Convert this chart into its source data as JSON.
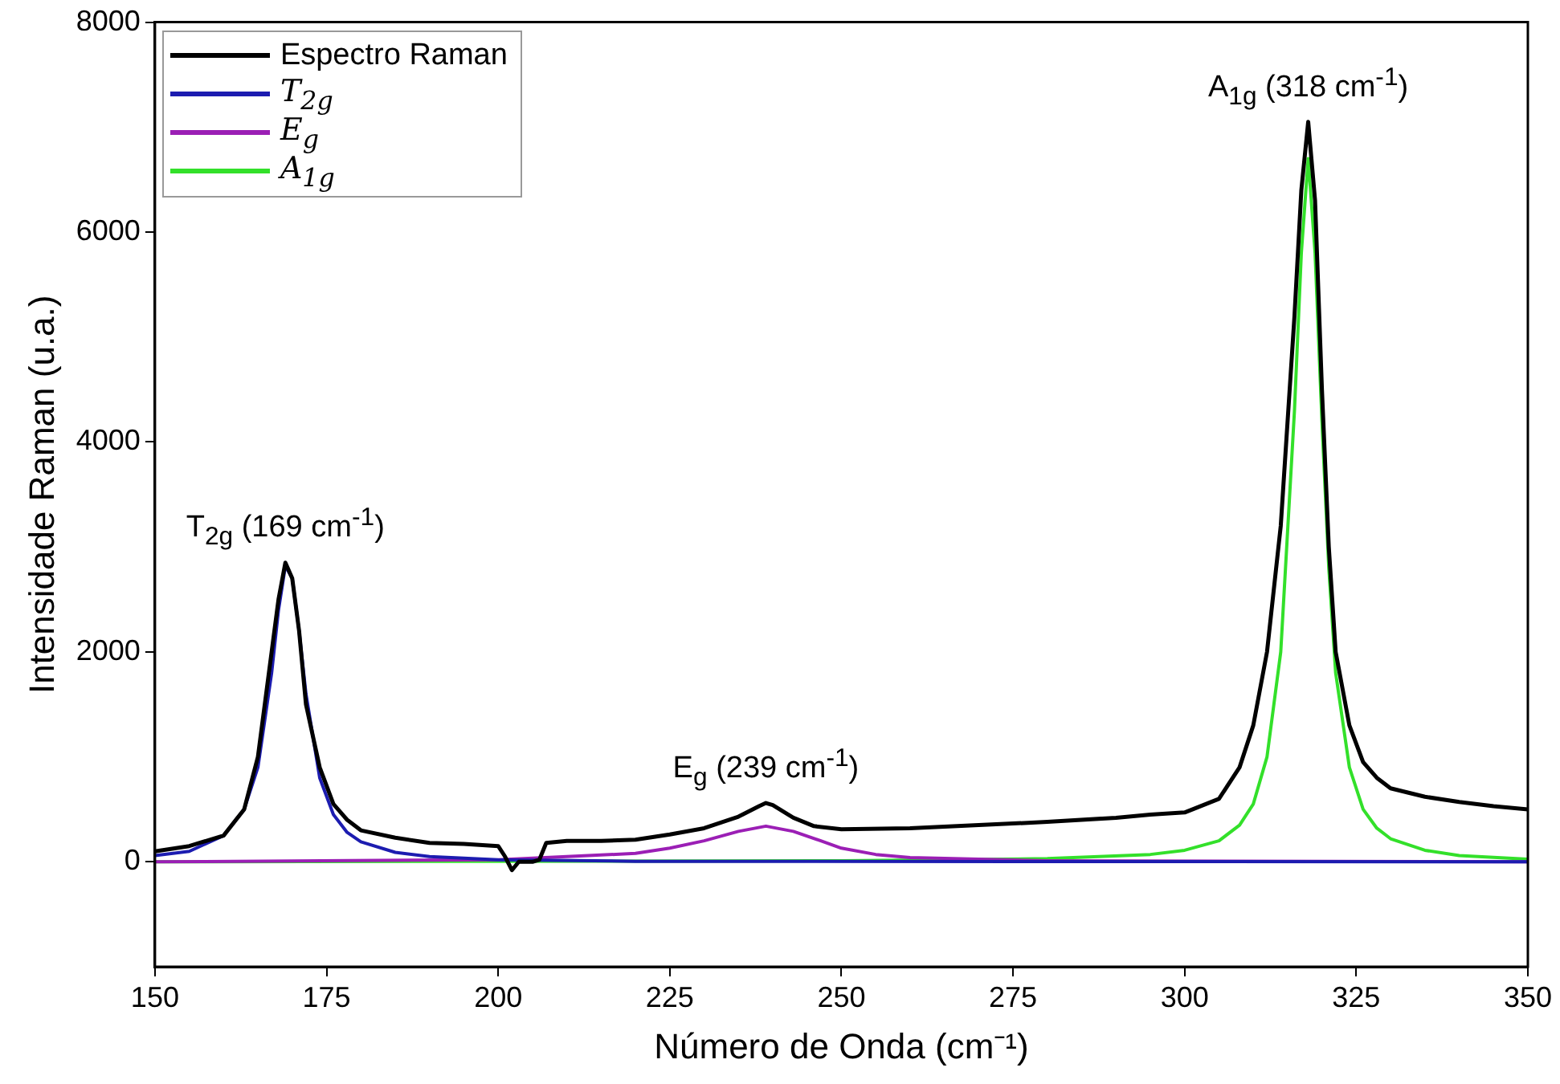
{
  "chart_data": {
    "type": "line",
    "xlabel": "Número de Onda (cm⁻¹)",
    "ylabel": "Intensidade Raman (u.a.)",
    "xlim": [
      150,
      350
    ],
    "xticks": [
      150,
      175,
      200,
      225,
      250,
      275,
      300,
      325,
      350
    ],
    "ylim": [
      -1000,
      8000
    ],
    "yticks": [
      0,
      2000,
      4000,
      6000,
      8000
    ],
    "grid": false,
    "legend": "top left",
    "marker": "none",
    "line_style": "solid",
    "annotations": [
      {
        "text": "T$_{2g}$ (169 cm$^{-1}$)",
        "x": 169,
        "y": 2850
      },
      {
        "text": "E$_{g}$ (239 cm$^{-1}$)",
        "x": 239,
        "y": 560
      },
      {
        "text": "A$_{1g}$ (318 cm$^{-1}$)",
        "x": 318,
        "y": 7050
      }
    ],
    "series": [
      {
        "name": "Espectro Raman",
        "color": "#000000",
        "x": [
          150,
          155,
          160,
          163,
          165,
          167,
          168,
          169,
          170,
          171,
          172,
          174,
          176,
          178,
          180,
          185,
          190,
          195,
          200,
          201,
          202,
          203,
          205,
          206,
          207,
          210,
          215,
          220,
          225,
          230,
          235,
          238,
          239,
          240,
          243,
          246,
          250,
          260,
          270,
          280,
          290,
          295,
          300,
          305,
          308,
          310,
          312,
          314,
          316,
          317,
          318,
          319,
          320,
          321,
          322,
          324,
          326,
          328,
          330,
          335,
          340,
          345,
          350
        ],
        "values": [
          100,
          150,
          250,
          500,
          1000,
          2000,
          2500,
          2850,
          2700,
          2200,
          1500,
          900,
          550,
          400,
          300,
          230,
          180,
          170,
          150,
          50,
          -80,
          0,
          0,
          20,
          180,
          200,
          200,
          210,
          260,
          320,
          430,
          530,
          560,
          540,
          420,
          340,
          310,
          320,
          350,
          380,
          420,
          450,
          470,
          600,
          900,
          1300,
          2000,
          3200,
          5200,
          6400,
          7050,
          6300,
          4500,
          3000,
          2000,
          1300,
          950,
          800,
          700,
          620,
          570,
          530,
          500
        ]
      },
      {
        "name": "T$_{2g}$",
        "color": "#1c1cb0",
        "x": [
          150,
          155,
          160,
          163,
          165,
          167,
          168,
          169,
          170,
          171,
          172,
          174,
          176,
          178,
          180,
          185,
          190,
          200,
          220,
          350
        ],
        "values": [
          60,
          100,
          250,
          500,
          900,
          1800,
          2400,
          2820,
          2700,
          2200,
          1600,
          800,
          450,
          280,
          190,
          90,
          50,
          20,
          5,
          0
        ]
      },
      {
        "name": "E$_{g}$",
        "color": "#9b1fb5",
        "x": [
          150,
          200,
          220,
          225,
          230,
          235,
          239,
          243,
          247,
          250,
          255,
          260,
          280,
          350
        ],
        "values": [
          0,
          20,
          80,
          130,
          200,
          290,
          340,
          290,
          200,
          130,
          70,
          40,
          10,
          0
        ]
      },
      {
        "name": "A$_{1g}$",
        "color": "#33e02a",
        "x": [
          150,
          250,
          280,
          295,
          300,
          305,
          308,
          310,
          312,
          314,
          316,
          317,
          318,
          319,
          320,
          321,
          322,
          324,
          326,
          328,
          330,
          335,
          340,
          350
        ],
        "values": [
          0,
          10,
          30,
          70,
          110,
          200,
          350,
          550,
          1000,
          2000,
          4300,
          5800,
          6700,
          5800,
          4200,
          2800,
          1800,
          900,
          500,
          320,
          220,
          110,
          60,
          25
        ]
      }
    ]
  }
}
